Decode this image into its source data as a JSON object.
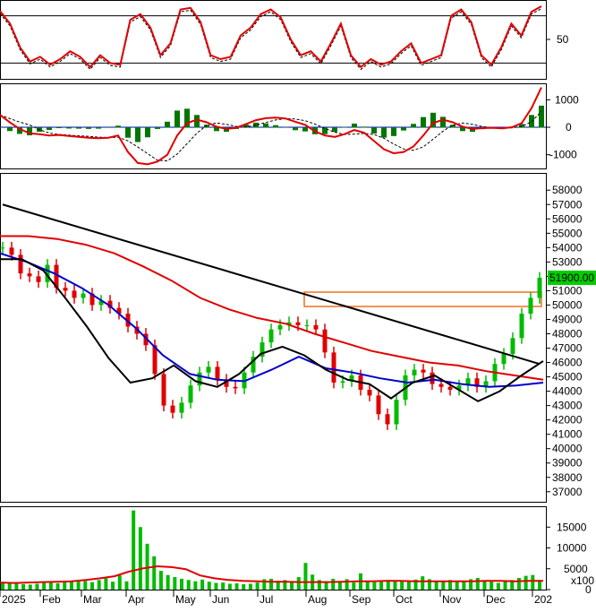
{
  "chart_data": [
    {
      "type": "line",
      "panel": "stochastic",
      "y_ticks": [
        "50"
      ],
      "reference_levels": [
        80,
        20
      ],
      "ylim": [
        0,
        100
      ],
      "series": [
        {
          "color": "#e00000",
          "values": [
            86,
            70,
            40,
            22,
            28,
            18,
            25,
            35,
            28,
            15,
            30,
            20,
            18,
            75,
            82,
            65,
            30,
            45,
            88,
            90,
            72,
            30,
            25,
            28,
            55,
            65,
            82,
            88,
            78,
            50,
            30,
            35,
            22,
            45,
            70,
            30,
            15,
            25,
            18,
            22,
            35,
            45,
            20,
            25,
            30,
            80,
            88,
            72,
            30,
            18,
            40,
            70,
            55,
            85,
            92
          ]
        }
      ]
    },
    {
      "type": "line",
      "panel": "macd",
      "y_ticks": [
        "1000",
        "0",
        "-1000"
      ],
      "ylim": [
        -1500,
        1600
      ],
      "series": [
        {
          "color": "#e00000",
          "values": [
            450,
            180,
            -60,
            -220,
            -250,
            -300,
            -280,
            -320,
            -350,
            -380,
            -400,
            -380,
            -300,
            -900,
            -1300,
            -1350,
            -1250,
            -1000,
            -300,
            150,
            280,
            180,
            20,
            -60,
            -20,
            120,
            260,
            330,
            350,
            320,
            200,
            90,
            -150,
            -300,
            -350,
            -250,
            -100,
            -200,
            -500,
            -800,
            -950,
            -900,
            -700,
            -300,
            150,
            280,
            180,
            20,
            -60,
            -30,
            -20,
            -40,
            0,
            150,
            700,
            1450
          ]
        }
      ]
    },
    {
      "type": "line",
      "panel": "price",
      "y_ticks": [
        "58000",
        "57000",
        "56000",
        "55000",
        "54000",
        "53000",
        "52000",
        "51000",
        "50000",
        "49000",
        "48000",
        "47000",
        "46000",
        "45000",
        "44000",
        "43000",
        "42000",
        "41000",
        "40000",
        "39000",
        "38000",
        "37000"
      ],
      "last_price_label": "51900.00",
      "ylim": [
        36300,
        59200
      ],
      "price_series": [
        54000,
        53500,
        52200,
        52000,
        51600,
        52800,
        51200,
        51000,
        50500,
        50800,
        50000,
        50300,
        49800,
        49400,
        48500,
        48000,
        47200,
        45200,
        43000,
        42500,
        43200,
        44400,
        45300,
        45700,
        44800,
        44300,
        44200,
        45300,
        46400,
        47400,
        48300,
        48600,
        48800,
        48600,
        48600,
        48300,
        46700,
        44600,
        44700,
        45100,
        44100,
        43700,
        42400,
        41700,
        43400,
        45100,
        45500,
        45300,
        44500,
        44300,
        44100,
        44400,
        44900,
        44300,
        44700,
        45900,
        46600,
        47700,
        49400,
        50500,
        51900
      ],
      "bars": [],
      "series": [
        {
          "color": "#e00000",
          "values": [
            54800,
            54800,
            54600,
            54200,
            53600,
            52700,
            51700,
            50500,
            49700,
            49100,
            48700,
            48000,
            47400,
            46800,
            46400,
            46000,
            45800,
            45400,
            45100,
            44800
          ]
        },
        {
          "color": "#0000cc",
          "values": [
            53600,
            53000,
            52200,
            51200,
            50000,
            48400,
            46500,
            45200,
            44800,
            44700,
            45500,
            46400,
            45600,
            45300,
            44900,
            44600,
            44800,
            44500,
            44300,
            44400,
            44600
          ]
        },
        {
          "color": "#000000",
          "values": [
            53200,
            53200,
            52400,
            50500,
            48500,
            46300,
            44600,
            44900,
            45800,
            44700,
            44300,
            45200,
            46600,
            47100,
            46500,
            45500,
            44800,
            44500,
            43500,
            44600,
            45100,
            44200,
            43300,
            44000,
            45100,
            46100
          ]
        }
      ],
      "trendline": {
        "from": [
          0,
          57000
        ],
        "to": [
          60,
          45900
        ],
        "color": "#000000"
      },
      "resistance_box": {
        "y_low": 49900,
        "y_high": 50900,
        "color": "#f07020"
      }
    },
    {
      "type": "bar",
      "panel": "volume",
      "y_ticks": [
        "15000",
        "10000",
        "5000",
        "0"
      ],
      "unit_label": "x100",
      "ylim": [
        0,
        20000
      ],
      "values": [
        1800,
        1500,
        1400,
        1300,
        1200,
        1400,
        1600,
        1700,
        1500,
        1900,
        2100,
        2000,
        2100,
        1800,
        2300,
        2700,
        1900,
        3400,
        2000,
        19000,
        15000,
        11000,
        8000,
        4500,
        3500,
        3000,
        2600,
        2300,
        2000,
        2400,
        1900,
        1600,
        1700,
        1400,
        1500,
        1300,
        1400,
        1700,
        2500,
        2600,
        2100,
        2300,
        2000,
        3000,
        6400,
        3600,
        2300,
        2000,
        2600,
        1800,
        2500,
        1700,
        3900,
        2100,
        1800,
        1900,
        2300,
        2000,
        2200,
        2100,
        2400,
        3200,
        2500,
        2100,
        1900,
        2300,
        1800,
        2000,
        2500,
        2800,
        2100,
        1900,
        1600,
        2000,
        2300,
        2800,
        3300,
        3500,
        2300
      ],
      "ma": {
        "color": "#e00000",
        "values": [
          1700,
          1600,
          1700,
          1800,
          1900,
          2000,
          2300,
          2700,
          3200,
          4300,
          5100,
          5600,
          5400,
          4900,
          3400,
          2700,
          2300,
          2100,
          2000,
          1900,
          1900,
          1800,
          1800,
          1800,
          1900,
          2000,
          2000,
          2100,
          2100,
          2000,
          2000,
          2000,
          2000,
          2000,
          2100,
          2100,
          2000,
          2100,
          2100
        ]
      }
    }
  ],
  "x_axis": {
    "months": [
      "2025",
      "Feb",
      "Mar",
      "Apr",
      "May",
      "Jun",
      "Jul",
      "Aug",
      "Sep",
      "Oct",
      "Nov",
      "Dec",
      "202"
    ]
  },
  "colors": {
    "green": "#00bb00",
    "red": "#e00000",
    "blue": "#0000cc",
    "black": "#000000",
    "orange": "#f07020",
    "grid": "#000000"
  }
}
